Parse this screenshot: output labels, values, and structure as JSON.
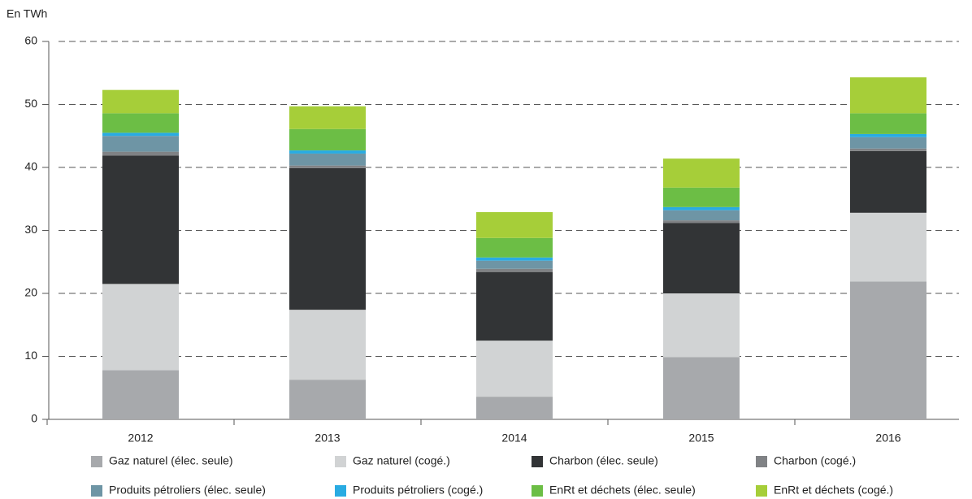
{
  "chart_data": {
    "type": "stacked_bar",
    "y_label": "En TWh",
    "categories": [
      "2012",
      "2013",
      "2014",
      "2015",
      "2016"
    ],
    "ylim": [
      0,
      60
    ],
    "yticks": [
      0,
      10,
      20,
      30,
      40,
      50,
      60
    ],
    "grid": true,
    "series": [
      {
        "name": "Gaz naturel (élec. seule)",
        "color": "#a7a9ac",
        "values": [
          7.8,
          6.3,
          3.6,
          9.9,
          21.9
        ]
      },
      {
        "name": "Gaz naturel (cogé.)",
        "color": "#d1d3d4",
        "values": [
          13.7,
          11.1,
          8.9,
          10.1,
          10.9
        ]
      },
      {
        "name": "Charbon (élec. seule)",
        "color": "#323436",
        "values": [
          20.4,
          22.5,
          10.9,
          11.2,
          9.8
        ]
      },
      {
        "name": "Charbon (cogé.)",
        "color": "#808285",
        "values": [
          0.6,
          0.4,
          0.5,
          0.4,
          0.4
        ]
      },
      {
        "name": "Produits pétroliers (élec. seule)",
        "color": "#6e95a5",
        "values": [
          2.5,
          1.9,
          1.3,
          1.6,
          1.8
        ]
      },
      {
        "name": "Produits pétroliers (cogé.)",
        "color": "#29abe2",
        "values": [
          0.5,
          0.5,
          0.5,
          0.5,
          0.5
        ]
      },
      {
        "name": "EnRt et déchets (élec. seule)",
        "color": "#6cbe45",
        "values": [
          3.1,
          3.4,
          3.1,
          3.1,
          3.3
        ]
      },
      {
        "name": "EnRt et déchets (cogé.)",
        "color": "#a6ce39",
        "values": [
          3.7,
          3.6,
          4.1,
          4.6,
          5.7
        ]
      }
    ]
  }
}
